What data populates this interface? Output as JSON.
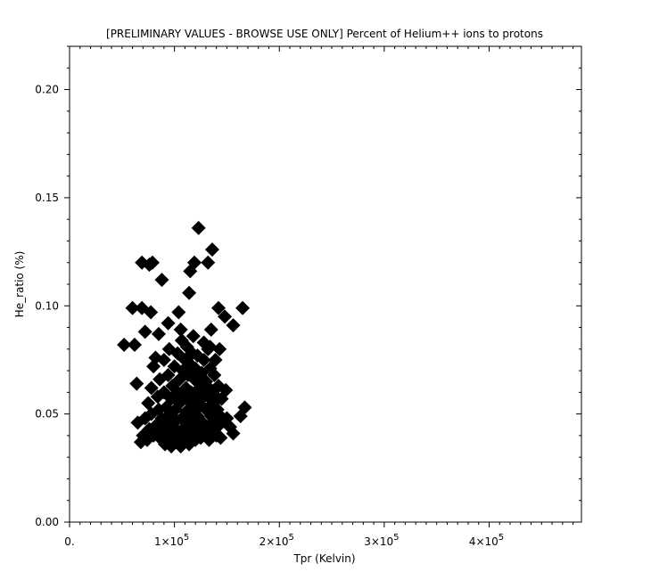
{
  "chart_data": {
    "type": "scatter",
    "title": "[PRELIMINARY VALUES - BROWSE USE ONLY] Percent of Helium++ ions to protons",
    "xlabel": "Tpr (Kelvin)",
    "ylabel": "He_ratio (%)",
    "xlim": [
      0,
      488000
    ],
    "ylim": [
      0,
      0.22
    ],
    "x_ticks": [
      {
        "value": 0,
        "label": "0.",
        "exp": ""
      },
      {
        "value": 100000,
        "label": "1×10",
        "exp": "5"
      },
      {
        "value": 200000,
        "label": "2×10",
        "exp": "5"
      },
      {
        "value": 300000,
        "label": "3×10",
        "exp": "5"
      },
      {
        "value": 400000,
        "label": "4×10",
        "exp": "5"
      }
    ],
    "y_ticks": [
      {
        "value": 0.0,
        "label": "0.00"
      },
      {
        "value": 0.05,
        "label": "0.05"
      },
      {
        "value": 0.1,
        "label": "0.10"
      },
      {
        "value": 0.15,
        "label": "0.15"
      },
      {
        "value": 0.2,
        "label": "0.20"
      }
    ],
    "marker": "diamond",
    "marker_color": "#000000",
    "grid": false,
    "points": [
      [
        52000,
        0.082
      ],
      [
        62000,
        0.082
      ],
      [
        60000,
        0.099
      ],
      [
        69000,
        0.099
      ],
      [
        77500,
        0.097
      ],
      [
        69000,
        0.12
      ],
      [
        76000,
        0.119
      ],
      [
        79000,
        0.12
      ],
      [
        88000,
        0.112
      ],
      [
        72000,
        0.088
      ],
      [
        85000,
        0.087
      ],
      [
        94000,
        0.092
      ],
      [
        104000,
        0.097
      ],
      [
        114000,
        0.106
      ],
      [
        115000,
        0.116
      ],
      [
        119000,
        0.12
      ],
      [
        123000,
        0.136
      ],
      [
        132000,
        0.12
      ],
      [
        136000,
        0.126
      ],
      [
        142000,
        0.099
      ],
      [
        148000,
        0.095
      ],
      [
        156000,
        0.091
      ],
      [
        165000,
        0.099
      ],
      [
        135000,
        0.089
      ],
      [
        143000,
        0.08
      ],
      [
        64000,
        0.064
      ],
      [
        167000,
        0.053
      ],
      [
        163000,
        0.049
      ],
      [
        156000,
        0.041
      ],
      [
        149000,
        0.061
      ],
      [
        65000,
        0.046
      ],
      [
        68000,
        0.037
      ],
      [
        70000,
        0.04
      ],
      [
        72000,
        0.048
      ],
      [
        74000,
        0.038
      ],
      [
        75000,
        0.055
      ],
      [
        76000,
        0.043
      ],
      [
        78000,
        0.05
      ],
      [
        78000,
        0.062
      ],
      [
        80000,
        0.04
      ],
      [
        80000,
        0.072
      ],
      [
        82000,
        0.076
      ],
      [
        83000,
        0.045
      ],
      [
        84000,
        0.058
      ],
      [
        85000,
        0.052
      ],
      [
        86000,
        0.039
      ],
      [
        86000,
        0.066
      ],
      [
        88000,
        0.048
      ],
      [
        88000,
        0.042
      ],
      [
        90000,
        0.06
      ],
      [
        90000,
        0.075
      ],
      [
        91000,
        0.036
      ],
      [
        92000,
        0.053
      ],
      [
        93000,
        0.045
      ],
      [
        94000,
        0.068
      ],
      [
        95000,
        0.04
      ],
      [
        95000,
        0.08
      ],
      [
        96000,
        0.05
      ],
      [
        97000,
        0.035
      ],
      [
        97000,
        0.057
      ],
      [
        98000,
        0.063
      ],
      [
        99000,
        0.044
      ],
      [
        100000,
        0.072
      ],
      [
        100000,
        0.038
      ],
      [
        101000,
        0.052
      ],
      [
        102000,
        0.047
      ],
      [
        103000,
        0.06
      ],
      [
        103000,
        0.078
      ],
      [
        104000,
        0.041
      ],
      [
        105000,
        0.066
      ],
      [
        105000,
        0.055
      ],
      [
        106000,
        0.035
      ],
      [
        107000,
        0.084
      ],
      [
        107000,
        0.048
      ],
      [
        108000,
        0.07
      ],
      [
        108000,
        0.043
      ],
      [
        109000,
        0.058
      ],
      [
        110000,
        0.038
      ],
      [
        110000,
        0.075
      ],
      [
        111000,
        0.062
      ],
      [
        111000,
        0.051
      ],
      [
        112000,
        0.045
      ],
      [
        112000,
        0.081
      ],
      [
        113000,
        0.068
      ],
      [
        114000,
        0.036
      ],
      [
        114000,
        0.056
      ],
      [
        115000,
        0.073
      ],
      [
        115000,
        0.049
      ],
      [
        116000,
        0.041
      ],
      [
        116000,
        0.06
      ],
      [
        117000,
        0.078
      ],
      [
        118000,
        0.053
      ],
      [
        118000,
        0.045
      ],
      [
        119000,
        0.066
      ],
      [
        120000,
        0.038
      ],
      [
        120000,
        0.071
      ],
      [
        121000,
        0.057
      ],
      [
        122000,
        0.049
      ],
      [
        122000,
        0.077
      ],
      [
        123000,
        0.042
      ],
      [
        124000,
        0.062
      ],
      [
        125000,
        0.054
      ],
      [
        125000,
        0.039
      ],
      [
        126000,
        0.069
      ],
      [
        127000,
        0.046
      ],
      [
        128000,
        0.075
      ],
      [
        128000,
        0.058
      ],
      [
        129000,
        0.04
      ],
      [
        130000,
        0.052
      ],
      [
        130000,
        0.065
      ],
      [
        131000,
        0.044
      ],
      [
        132000,
        0.08
      ],
      [
        132000,
        0.058
      ],
      [
        133000,
        0.038
      ],
      [
        134000,
        0.071
      ],
      [
        135000,
        0.049
      ],
      [
        135000,
        0.061
      ],
      [
        136000,
        0.042
      ],
      [
        137000,
        0.055
      ],
      [
        138000,
        0.068
      ],
      [
        138000,
        0.047
      ],
      [
        139000,
        0.075
      ],
      [
        140000,
        0.04
      ],
      [
        140000,
        0.058
      ],
      [
        141000,
        0.052
      ],
      [
        142000,
        0.063
      ],
      [
        143000,
        0.045
      ],
      [
        144000,
        0.039
      ],
      [
        145000,
        0.057
      ],
      [
        146000,
        0.048
      ],
      [
        150000,
        0.048
      ],
      [
        153000,
        0.044
      ],
      [
        106000,
        0.089
      ],
      [
        118000,
        0.086
      ],
      [
        128000,
        0.083
      ],
      [
        134000,
        0.081
      ]
    ]
  }
}
